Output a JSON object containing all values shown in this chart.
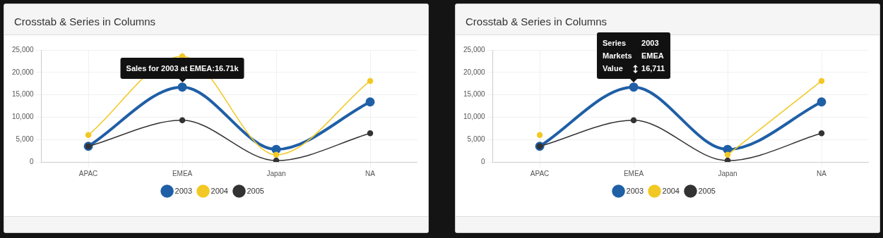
{
  "chart_data": [
    {
      "type": "line",
      "title": "Crosstab & Series in Columns",
      "categories": [
        "APAC",
        "EMEA",
        "Japan",
        "NA"
      ],
      "series": [
        {
          "name": "2003",
          "color": "#1f5fa6",
          "values": [
            3500,
            16711,
            2800,
            13400
          ]
        },
        {
          "name": "2004",
          "color": "#f2c824",
          "values": [
            6000,
            23600,
            1600,
            18100
          ]
        },
        {
          "name": "2005",
          "color": "#333333",
          "values": [
            3500,
            9300,
            300,
            6400
          ]
        }
      ],
      "ylim": [
        0,
        25000
      ],
      "yticks": [
        {
          "value": 0,
          "label": "0"
        },
        {
          "value": 5000,
          "label": "5,000"
        },
        {
          "value": 10000,
          "label": "10,000"
        },
        {
          "value": 15000,
          "label": "15,000"
        },
        {
          "value": 20000,
          "label": "20,000"
        },
        {
          "value": 25000,
          "label": "25,000"
        }
      ],
      "grid": true,
      "legend": "bottom",
      "marker": "circle",
      "line_style": "solid",
      "annotations": [
        {
          "text": "Sales for 2003 at EMEA:16.71k",
          "x": "EMEA",
          "y": 16711
        }
      ]
    },
    {
      "type": "line",
      "title": "Crosstab & Series in Columns",
      "categories": [
        "APAC",
        "EMEA",
        "Japan",
        "NA"
      ],
      "series": [
        {
          "name": "2003",
          "color": "#1f5fa6",
          "values": [
            3500,
            16711,
            2800,
            13400
          ]
        },
        {
          "name": "2004",
          "color": "#f2c824",
          "values": [
            6000,
            null,
            1600,
            18100
          ]
        },
        {
          "name": "2005",
          "color": "#333333",
          "values": [
            3500,
            9300,
            300,
            6400
          ]
        }
      ],
      "ylim": [
        0,
        25000
      ],
      "yticks": [
        {
          "value": 0,
          "label": "0"
        },
        {
          "value": 5000,
          "label": "5,000"
        },
        {
          "value": 10000,
          "label": "10,000"
        },
        {
          "value": 15000,
          "label": "15,000"
        },
        {
          "value": 20000,
          "label": "20,000"
        },
        {
          "value": 25000,
          "label": "25,000"
        }
      ],
      "grid": true,
      "legend": "bottom",
      "marker": "circle",
      "line_style": "solid",
      "annotations": [
        {
          "text": "Series\t2003\nMarkets\tEMEA\nValue\t16,711",
          "x": "EMEA",
          "y": 16711
        }
      ]
    }
  ]
}
